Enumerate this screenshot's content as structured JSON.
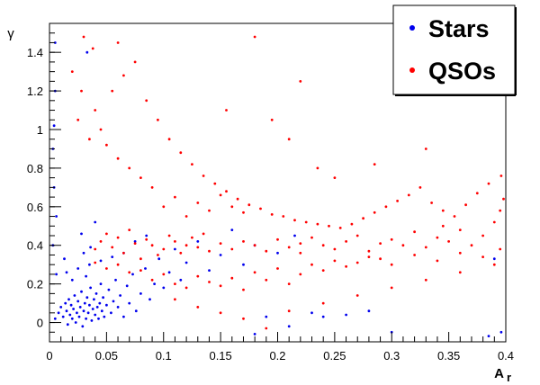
{
  "chart_data": {
    "type": "scatter",
    "xlabel": "A",
    "xlabel_sub": "r",
    "ylabel": "γ",
    "xlim": [
      0,
      0.4
    ],
    "ylim": [
      -0.1,
      1.55
    ],
    "x_ticks": [
      0,
      0.05,
      0.1,
      0.15,
      0.2,
      0.25,
      0.3,
      0.35,
      0.4
    ],
    "x_tick_labels": [
      "0",
      "0.05",
      "0.1",
      "0.15",
      "0.2",
      "0.25",
      "0.3",
      "0.35",
      "0.4"
    ],
    "y_ticks": [
      0,
      0.2,
      0.4,
      0.6,
      0.8,
      1.0,
      1.2,
      1.4
    ],
    "y_tick_labels": [
      "0",
      "0.2",
      "0.4",
      "0.6",
      "0.8",
      "1",
      "1.2",
      "1.4"
    ],
    "grid": false,
    "legend_position": "top-right",
    "series": [
      {
        "name": "Stars",
        "color": "#0000ee",
        "points": [
          [
            0.005,
            0.02
          ],
          [
            0.008,
            0.05
          ],
          [
            0.01,
            0.08
          ],
          [
            0.012,
            0.03
          ],
          [
            0.014,
            0.1
          ],
          [
            0.015,
            0.06
          ],
          [
            0.016,
            -0.01
          ],
          [
            0.017,
            0.12
          ],
          [
            0.018,
            0.04
          ],
          [
            0.019,
            0.09
          ],
          [
            0.02,
            0.02
          ],
          [
            0.021,
            0.07
          ],
          [
            0.022,
            0.14
          ],
          [
            0.023,
            0.0
          ],
          [
            0.024,
            0.05
          ],
          [
            0.025,
            0.11
          ],
          [
            0.026,
            0.03
          ],
          [
            0.027,
            0.08
          ],
          [
            0.028,
            0.16
          ],
          [
            0.029,
            -0.02
          ],
          [
            0.03,
            0.06
          ],
          [
            0.031,
            0.1
          ],
          [
            0.032,
            0.02
          ],
          [
            0.033,
            0.13
          ],
          [
            0.034,
            0.05
          ],
          [
            0.035,
            0.09
          ],
          [
            0.036,
            0.18
          ],
          [
            0.037,
            0.01
          ],
          [
            0.038,
            0.07
          ],
          [
            0.039,
            0.12
          ],
          [
            0.04,
            0.04
          ],
          [
            0.041,
            0.15
          ],
          [
            0.042,
            0.08
          ],
          [
            0.043,
            0.02
          ],
          [
            0.044,
            0.1
          ],
          [
            0.045,
            0.2
          ],
          [
            0.046,
            0.06
          ],
          [
            0.047,
            0.13
          ],
          [
            0.048,
            0.03
          ],
          [
            0.05,
            0.09
          ],
          [
            0.052,
            0.17
          ],
          [
            0.054,
            0.05
          ],
          [
            0.056,
            0.11
          ],
          [
            0.058,
            0.22
          ],
          [
            0.06,
            0.08
          ],
          [
            0.062,
            0.14
          ],
          [
            0.065,
            0.03
          ],
          [
            0.068,
            0.19
          ],
          [
            0.07,
            0.1
          ],
          [
            0.073,
            0.25
          ],
          [
            0.076,
            0.06
          ],
          [
            0.08,
            0.15
          ],
          [
            0.084,
            0.28
          ],
          [
            0.088,
            0.12
          ],
          [
            0.092,
            0.2
          ],
          [
            0.096,
            0.33
          ],
          [
            0.1,
            0.18
          ],
          [
            0.105,
            0.26
          ],
          [
            0.11,
            0.38
          ],
          [
            0.115,
            0.22
          ],
          [
            0.12,
            0.31
          ],
          [
            0.13,
            0.42
          ],
          [
            0.14,
            0.27
          ],
          [
            0.15,
            0.35
          ],
          [
            0.16,
            0.48
          ],
          [
            0.17,
            0.3
          ],
          [
            0.18,
            0.4
          ],
          [
            0.19,
            0.03
          ],
          [
            0.2,
            0.36
          ],
          [
            0.215,
            0.45
          ],
          [
            0.23,
            0.05
          ],
          [
            0.26,
            0.04
          ],
          [
            0.28,
            0.06
          ],
          [
            0.3,
            -0.05
          ],
          [
            0.385,
            -0.07
          ],
          [
            0.39,
            0.33
          ],
          [
            0.396,
            -0.05
          ],
          [
            0.24,
            0.03
          ],
          [
            0.21,
            -0.02
          ],
          [
            0.18,
            -0.06
          ],
          [
            0.003,
            0.4
          ],
          [
            0.004,
            0.7
          ],
          [
            0.004,
            1.02
          ],
          [
            0.005,
            1.45
          ],
          [
            0.006,
            0.25
          ],
          [
            0.003,
            0.9
          ],
          [
            0.005,
            1.2
          ],
          [
            0.006,
            0.55
          ],
          [
            0.013,
            0.33
          ],
          [
            0.025,
            0.28
          ],
          [
            0.035,
            0.3
          ],
          [
            0.045,
            0.32
          ],
          [
            0.055,
            0.34
          ],
          [
            0.065,
            0.36
          ],
          [
            0.075,
            0.42
          ],
          [
            0.085,
            0.45
          ],
          [
            0.03,
            0.36
          ],
          [
            0.02,
            0.22
          ],
          [
            0.015,
            0.26
          ],
          [
            0.032,
            0.24
          ],
          [
            0.036,
            0.39
          ],
          [
            0.028,
            0.46
          ],
          [
            0.04,
            0.52
          ],
          [
            0.033,
            1.4
          ]
        ]
      },
      {
        "name": "QSOs",
        "color": "#ff0000",
        "points": [
          [
            0.09,
            0.4
          ],
          [
            0.1,
            0.38
          ],
          [
            0.11,
            0.42
          ],
          [
            0.095,
            0.35
          ],
          [
            0.105,
            0.45
          ],
          [
            0.12,
            0.4
          ],
          [
            0.085,
            0.43
          ],
          [
            0.115,
            0.36
          ],
          [
            0.13,
            0.39
          ],
          [
            0.075,
            0.41
          ],
          [
            0.14,
            0.37
          ],
          [
            0.125,
            0.44
          ],
          [
            0.08,
            0.33
          ],
          [
            0.135,
            0.46
          ],
          [
            0.07,
            0.48
          ],
          [
            0.15,
            0.41
          ],
          [
            0.16,
            0.38
          ],
          [
            0.065,
            0.36
          ],
          [
            0.17,
            0.42
          ],
          [
            0.06,
            0.44
          ],
          [
            0.18,
            0.4
          ],
          [
            0.055,
            0.39
          ],
          [
            0.19,
            0.37
          ],
          [
            0.05,
            0.46
          ],
          [
            0.2,
            0.43
          ],
          [
            0.045,
            0.42
          ],
          [
            0.21,
            0.39
          ],
          [
            0.04,
            0.38
          ],
          [
            0.22,
            0.41
          ],
          [
            0.22,
            0.36
          ],
          [
            0.23,
            0.44
          ],
          [
            0.24,
            0.4
          ],
          [
            0.25,
            0.38
          ],
          [
            0.26,
            0.42
          ],
          [
            0.27,
            0.45
          ],
          [
            0.28,
            0.37
          ],
          [
            0.29,
            0.41
          ],
          [
            0.3,
            0.43
          ],
          [
            0.31,
            0.4
          ],
          [
            0.32,
            0.47
          ],
          [
            0.33,
            0.39
          ],
          [
            0.34,
            0.44
          ],
          [
            0.35,
            0.42
          ],
          [
            0.36,
            0.48
          ],
          [
            0.37,
            0.4
          ],
          [
            0.38,
            0.45
          ],
          [
            0.39,
            0.52
          ],
          [
            0.395,
            0.58
          ],
          [
            0.1,
            0.6
          ],
          [
            0.11,
            0.65
          ],
          [
            0.09,
            0.7
          ],
          [
            0.12,
            0.55
          ],
          [
            0.08,
            0.75
          ],
          [
            0.13,
            0.62
          ],
          [
            0.07,
            0.8
          ],
          [
            0.14,
            0.58
          ],
          [
            0.06,
            0.85
          ],
          [
            0.15,
            0.66
          ],
          [
            0.05,
            0.92
          ],
          [
            0.16,
            0.6
          ],
          [
            0.045,
            1.0
          ],
          [
            0.17,
            0.57
          ],
          [
            0.04,
            1.1
          ],
          [
            0.055,
            1.2
          ],
          [
            0.065,
            1.28
          ],
          [
            0.075,
            1.35
          ],
          [
            0.06,
            1.45
          ],
          [
            0.03,
            1.48
          ],
          [
            0.038,
            1.42
          ],
          [
            0.085,
            1.15
          ],
          [
            0.095,
            1.05
          ],
          [
            0.105,
            0.95
          ],
          [
            0.115,
            0.88
          ],
          [
            0.125,
            0.82
          ],
          [
            0.135,
            0.76
          ],
          [
            0.145,
            0.72
          ],
          [
            0.155,
            0.68
          ],
          [
            0.165,
            0.64
          ],
          [
            0.175,
            0.61
          ],
          [
            0.185,
            0.59
          ],
          [
            0.195,
            0.56
          ],
          [
            0.205,
            0.55
          ],
          [
            0.215,
            0.53
          ],
          [
            0.225,
            0.52
          ],
          [
            0.235,
            0.51
          ],
          [
            0.245,
            0.5
          ],
          [
            0.255,
            0.49
          ],
          [
            0.265,
            0.51
          ],
          [
            0.275,
            0.54
          ],
          [
            0.285,
            0.57
          ],
          [
            0.295,
            0.6
          ],
          [
            0.305,
            0.63
          ],
          [
            0.315,
            0.66
          ],
          [
            0.325,
            0.7
          ],
          [
            0.335,
            0.62
          ],
          [
            0.345,
            0.58
          ],
          [
            0.355,
            0.55
          ],
          [
            0.365,
            0.61
          ],
          [
            0.375,
            0.67
          ],
          [
            0.385,
            0.72
          ],
          [
            0.396,
            0.76
          ],
          [
            0.398,
            0.64
          ],
          [
            0.21,
            0.95
          ],
          [
            0.22,
            1.25
          ],
          [
            0.18,
            1.48
          ],
          [
            0.155,
            1.1
          ],
          [
            0.195,
            1.05
          ],
          [
            0.235,
            0.8
          ],
          [
            0.25,
            0.75
          ],
          [
            0.285,
            0.82
          ],
          [
            0.33,
            0.9
          ],
          [
            0.345,
            0.5
          ],
          [
            0.1,
            0.25
          ],
          [
            0.11,
            0.2
          ],
          [
            0.09,
            0.22
          ],
          [
            0.12,
            0.18
          ],
          [
            0.13,
            0.24
          ],
          [
            0.08,
            0.27
          ],
          [
            0.14,
            0.21
          ],
          [
            0.15,
            0.19
          ],
          [
            0.16,
            0.23
          ],
          [
            0.17,
            0.17
          ],
          [
            0.18,
            0.26
          ],
          [
            0.19,
            0.22
          ],
          [
            0.2,
            0.28
          ],
          [
            0.21,
            0.2
          ],
          [
            0.22,
            0.25
          ],
          [
            0.23,
            0.3
          ],
          [
            0.24,
            0.27
          ],
          [
            0.25,
            0.32
          ],
          [
            0.26,
            0.29
          ],
          [
            0.27,
            0.31
          ],
          [
            0.28,
            0.34
          ],
          [
            0.29,
            0.33
          ],
          [
            0.3,
            0.3
          ],
          [
            0.32,
            0.35
          ],
          [
            0.34,
            0.32
          ],
          [
            0.36,
            0.36
          ],
          [
            0.38,
            0.34
          ],
          [
            0.395,
            0.38
          ],
          [
            0.06,
            0.3
          ],
          [
            0.05,
            0.28
          ],
          [
            0.07,
            0.26
          ],
          [
            0.04,
            0.31
          ],
          [
            0.11,
            0.12
          ],
          [
            0.13,
            0.08
          ],
          [
            0.15,
            0.05
          ],
          [
            0.17,
            0.02
          ],
          [
            0.19,
            -0.03
          ],
          [
            0.21,
            0.06
          ],
          [
            0.24,
            0.1
          ],
          [
            0.27,
            0.14
          ],
          [
            0.3,
            0.18
          ],
          [
            0.33,
            0.22
          ],
          [
            0.36,
            0.26
          ],
          [
            0.39,
            0.3
          ],
          [
            0.025,
            1.05
          ],
          [
            0.035,
            0.95
          ],
          [
            0.02,
            1.3
          ],
          [
            0.028,
            1.2
          ]
        ]
      }
    ]
  }
}
